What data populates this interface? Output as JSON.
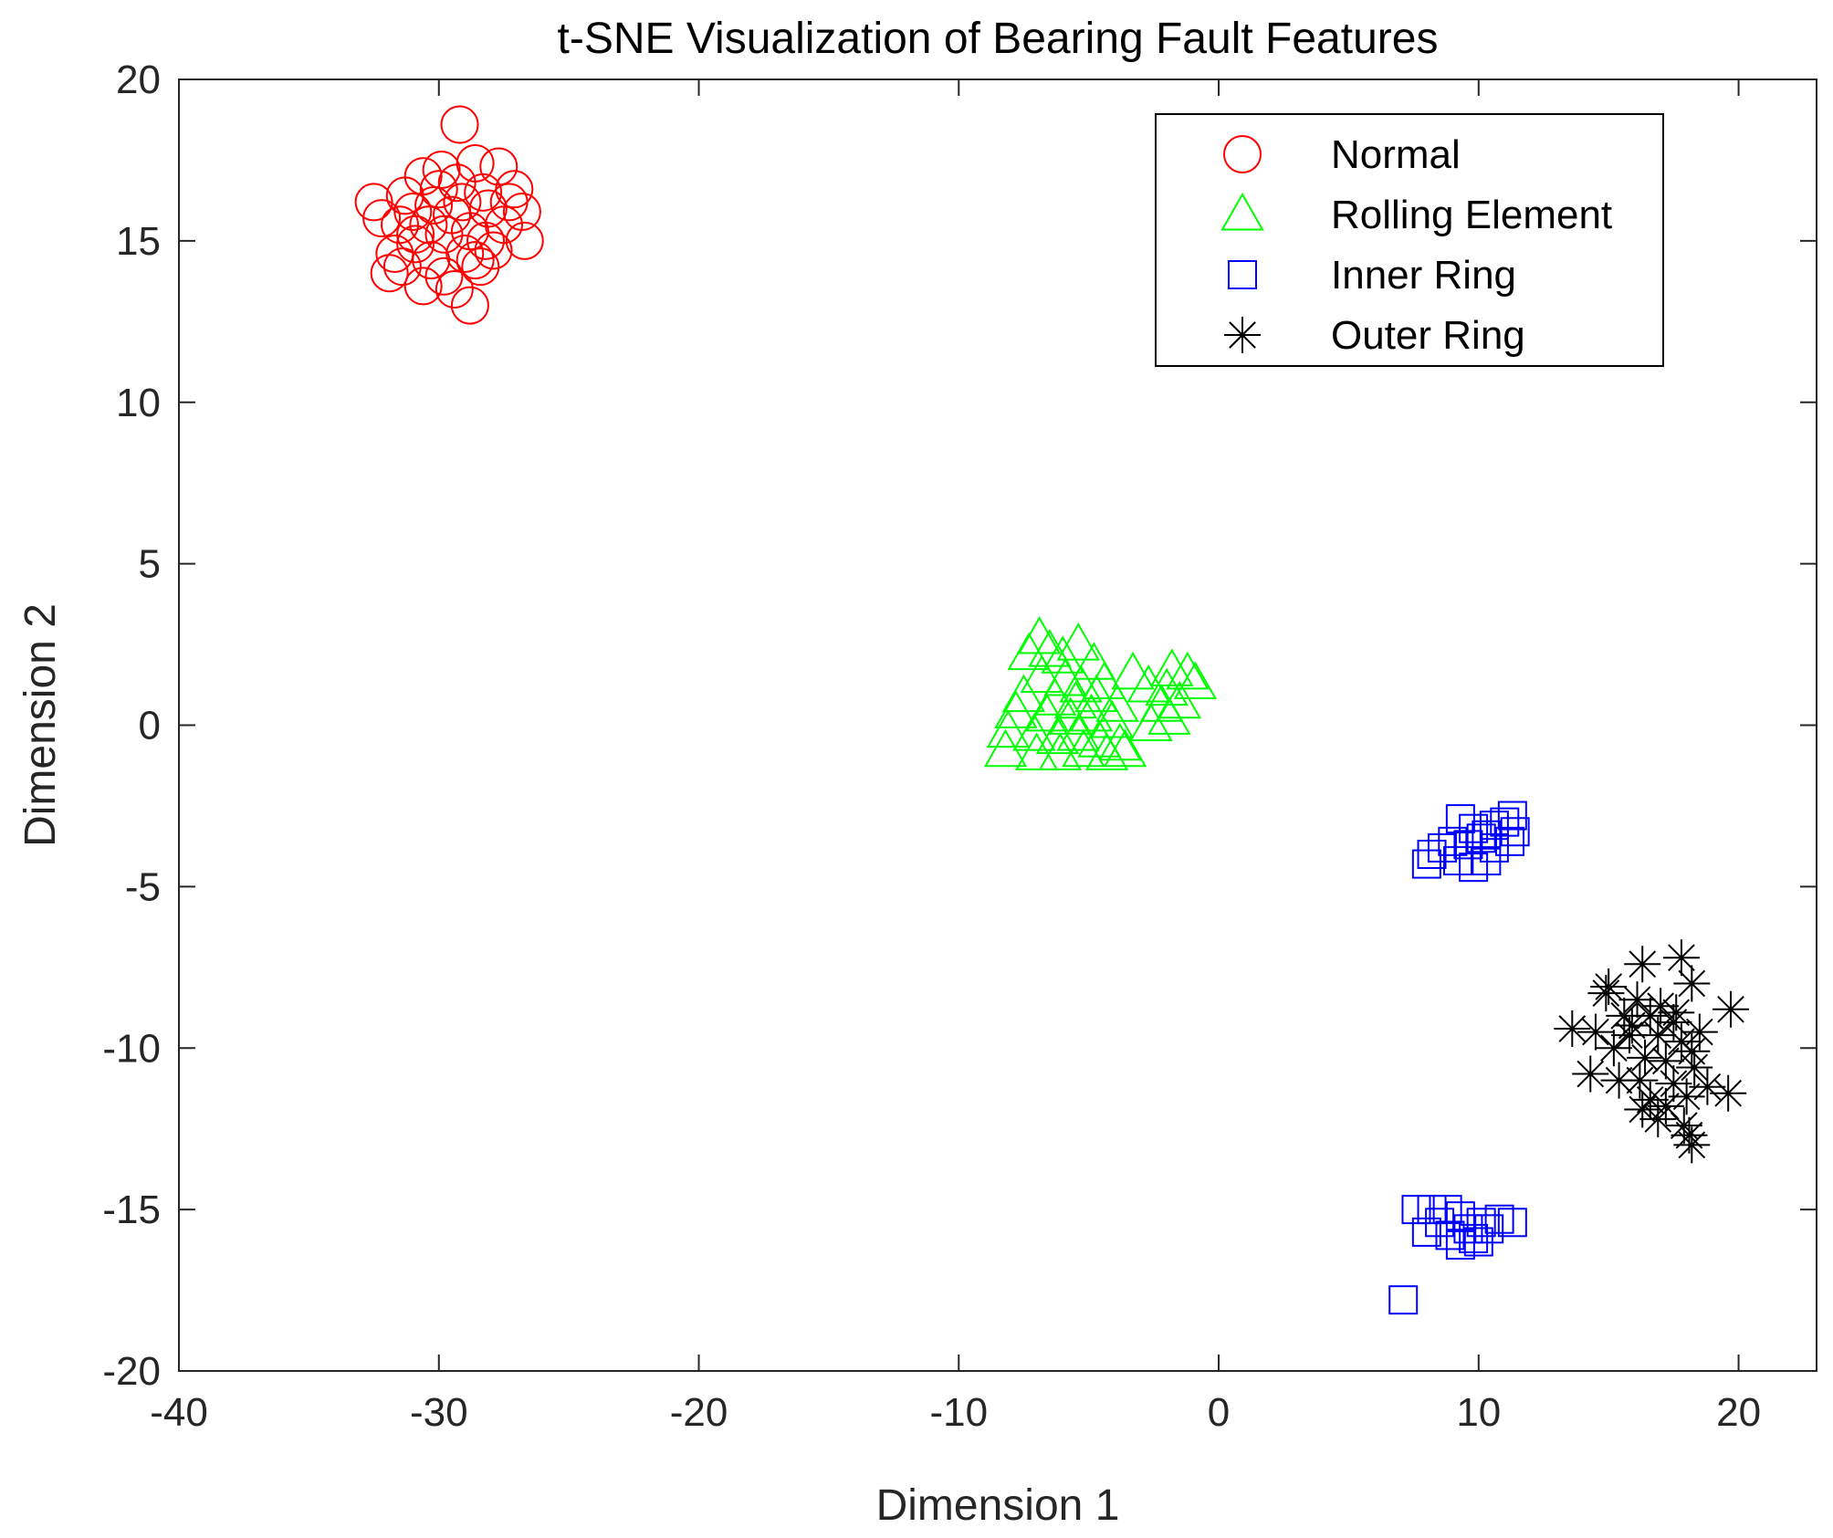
{
  "chart_data": {
    "type": "scatter",
    "title": "t-SNE Visualization of Bearing Fault Features",
    "xlabel": "Dimension 1",
    "ylabel": "Dimension 2",
    "xlim": [
      -40,
      23
    ],
    "ylim": [
      -20,
      20
    ],
    "xticks": [
      -40,
      -30,
      -20,
      -10,
      0,
      10,
      20
    ],
    "yticks": [
      -20,
      -15,
      -10,
      -5,
      0,
      5,
      10,
      15,
      20
    ],
    "xtick_labels": [
      "-40",
      "-30",
      "-20",
      "-10",
      "0",
      "10",
      "20"
    ],
    "ytick_labels": [
      "-20",
      "-15",
      "-10",
      "-5",
      "0",
      "5",
      "10",
      "15",
      "20"
    ],
    "grid": false,
    "box": true,
    "legend_position": "top-right",
    "series": [
      {
        "name": "Normal",
        "marker": "circle",
        "color": "#ff0000",
        "points": [
          [
            -29.2,
            18.6
          ],
          [
            -30.6,
            17.0
          ],
          [
            -29.9,
            17.2
          ],
          [
            -28.6,
            17.4
          ],
          [
            -27.7,
            17.3
          ],
          [
            -29.3,
            16.8
          ],
          [
            -27.1,
            16.6
          ],
          [
            -31.3,
            16.4
          ],
          [
            -32.5,
            16.2
          ],
          [
            -30.2,
            16.1
          ],
          [
            -28.1,
            16.0
          ],
          [
            -26.8,
            15.9
          ],
          [
            -29.5,
            15.8
          ],
          [
            -32.2,
            15.7
          ],
          [
            -31.5,
            15.5
          ],
          [
            -30.4,
            15.5
          ],
          [
            -27.5,
            15.5
          ],
          [
            -28.8,
            15.3
          ],
          [
            -29.8,
            15.2
          ],
          [
            -26.7,
            15.0
          ],
          [
            -30.9,
            14.9
          ],
          [
            -31.7,
            14.6
          ],
          [
            -29.0,
            14.6
          ],
          [
            -27.9,
            14.7
          ],
          [
            -30.3,
            14.4
          ],
          [
            -28.6,
            14.4
          ],
          [
            -31.4,
            14.2
          ],
          [
            -31.9,
            14.0
          ],
          [
            -29.8,
            13.9
          ],
          [
            -28.4,
            14.2
          ],
          [
            -30.6,
            13.6
          ],
          [
            -29.4,
            13.5
          ],
          [
            -28.8,
            13.0
          ],
          [
            -31.0,
            15.9
          ],
          [
            -28.3,
            16.5
          ],
          [
            -30.0,
            16.6
          ],
          [
            -27.3,
            16.2
          ],
          [
            -30.9,
            15.2
          ],
          [
            -29.1,
            16.2
          ],
          [
            -28.2,
            15.0
          ]
        ]
      },
      {
        "name": "Rolling Element",
        "marker": "triangle",
        "color": "#00ff00",
        "points": [
          [
            -6.9,
            2.7
          ],
          [
            -6.5,
            2.3
          ],
          [
            -7.3,
            2.2
          ],
          [
            -6.0,
            2.1
          ],
          [
            -5.4,
            2.5
          ],
          [
            -4.8,
            1.9
          ],
          [
            -3.3,
            1.6
          ],
          [
            -1.8,
            1.7
          ],
          [
            -1.2,
            1.6
          ],
          [
            -0.9,
            1.3
          ],
          [
            -6.8,
            1.5
          ],
          [
            -5.9,
            1.4
          ],
          [
            -5.3,
            1.2
          ],
          [
            -4.4,
            1.3
          ],
          [
            -2.7,
            1.2
          ],
          [
            -2.0,
            1.1
          ],
          [
            -7.5,
            0.9
          ],
          [
            -6.3,
            0.8
          ],
          [
            -5.5,
            0.7
          ],
          [
            -4.7,
            0.9
          ],
          [
            -3.9,
            0.6
          ],
          [
            -2.2,
            0.6
          ],
          [
            -1.5,
            0.7
          ],
          [
            -7.8,
            0.4
          ],
          [
            -6.6,
            0.3
          ],
          [
            -5.7,
            0.2
          ],
          [
            -4.9,
            0.3
          ],
          [
            -4.1,
            0.1
          ],
          [
            -2.6,
            0.0
          ],
          [
            -1.9,
            0.2
          ],
          [
            -8.1,
            -0.2
          ],
          [
            -7.1,
            -0.3
          ],
          [
            -6.2,
            -0.4
          ],
          [
            -5.4,
            -0.3
          ],
          [
            -4.6,
            -0.5
          ],
          [
            -3.8,
            -0.6
          ],
          [
            -8.2,
            -0.8
          ],
          [
            -7.0,
            -0.9
          ],
          [
            -6.1,
            -0.9
          ],
          [
            -5.2,
            -0.8
          ],
          [
            -4.3,
            -0.9
          ],
          [
            -3.6,
            -0.8
          ]
        ]
      },
      {
        "name": "Inner Ring",
        "marker": "square",
        "color": "#0000ff",
        "points": [
          [
            11.3,
            -2.8
          ],
          [
            11.0,
            -3.0
          ],
          [
            10.6,
            -3.1
          ],
          [
            9.3,
            -2.9
          ],
          [
            9.8,
            -3.2
          ],
          [
            11.4,
            -3.3
          ],
          [
            10.3,
            -3.4
          ],
          [
            9.0,
            -3.6
          ],
          [
            8.6,
            -3.8
          ],
          [
            9.6,
            -3.7
          ],
          [
            10.1,
            -3.5
          ],
          [
            11.2,
            -3.6
          ],
          [
            10.6,
            -3.8
          ],
          [
            8.2,
            -4.0
          ],
          [
            8.0,
            -4.3
          ],
          [
            9.2,
            -4.2
          ],
          [
            10.3,
            -4.2
          ],
          [
            9.8,
            -4.4
          ],
          [
            8.8,
            -15.0
          ],
          [
            8.2,
            -15.0
          ],
          [
            7.6,
            -15.0
          ],
          [
            9.3,
            -15.2
          ],
          [
            8.5,
            -15.4
          ],
          [
            10.1,
            -15.4
          ],
          [
            10.8,
            -15.3
          ],
          [
            11.3,
            -15.4
          ],
          [
            9.6,
            -15.6
          ],
          [
            10.4,
            -15.6
          ],
          [
            8.0,
            -15.7
          ],
          [
            8.9,
            -15.8
          ],
          [
            9.8,
            -15.9
          ],
          [
            10.0,
            -16.0
          ],
          [
            9.3,
            -16.1
          ],
          [
            7.1,
            -17.8
          ]
        ]
      },
      {
        "name": "Outer Ring",
        "marker": "asterisk",
        "color": "#000000",
        "points": [
          [
            17.8,
            -7.2
          ],
          [
            16.3,
            -7.4
          ],
          [
            18.2,
            -8.0
          ],
          [
            15.0,
            -8.1
          ],
          [
            16.1,
            -8.5
          ],
          [
            17.0,
            -8.7
          ],
          [
            19.7,
            -8.8
          ],
          [
            14.9,
            -8.3
          ],
          [
            15.6,
            -9.0
          ],
          [
            16.6,
            -9.0
          ],
          [
            17.5,
            -9.2
          ],
          [
            13.6,
            -9.4
          ],
          [
            14.5,
            -9.5
          ],
          [
            15.8,
            -9.6
          ],
          [
            16.9,
            -9.6
          ],
          [
            17.8,
            -9.8
          ],
          [
            18.2,
            -10.1
          ],
          [
            15.2,
            -10.0
          ],
          [
            16.4,
            -10.3
          ],
          [
            17.2,
            -10.4
          ],
          [
            18.3,
            -10.6
          ],
          [
            14.3,
            -10.8
          ],
          [
            15.4,
            -11.0
          ],
          [
            16.2,
            -11.0
          ],
          [
            17.5,
            -11.1
          ],
          [
            18.8,
            -11.2
          ],
          [
            19.6,
            -11.4
          ],
          [
            16.6,
            -11.6
          ],
          [
            17.2,
            -11.8
          ],
          [
            18.0,
            -11.5
          ],
          [
            16.9,
            -12.2
          ],
          [
            18.1,
            -12.7
          ],
          [
            18.2,
            -13.0
          ],
          [
            15.9,
            -9.3
          ],
          [
            17.6,
            -8.9
          ],
          [
            18.5,
            -9.5
          ],
          [
            16.3,
            -11.9
          ],
          [
            17.9,
            -12.4
          ]
        ]
      }
    ]
  }
}
